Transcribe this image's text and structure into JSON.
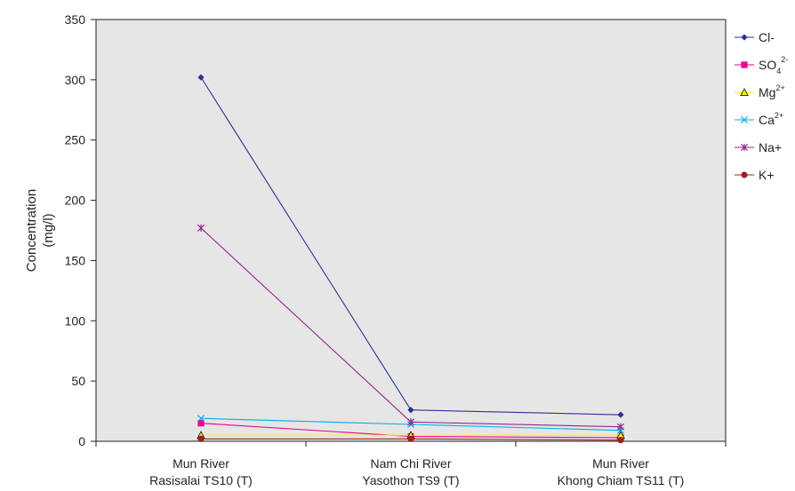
{
  "chart_data": {
    "type": "line",
    "title": "",
    "xlabel": "",
    "ylabel": [
      "Concentration",
      "(mg/l)"
    ],
    "ylim": [
      0,
      350
    ],
    "yticks": [
      0,
      50,
      100,
      150,
      200,
      250,
      300,
      350
    ],
    "grid": false,
    "legend_position": "right",
    "plot_background": "#e6e6e6",
    "categories": [
      [
        "Mun River",
        "Rasisalai TS10 (T)"
      ],
      [
        "Nam Chi River",
        "Yasothon TS9 (T)"
      ],
      [
        "Mun River",
        "Khong Chiam TS11 (T)"
      ]
    ],
    "series": [
      {
        "name": "Cl-",
        "base": "Cl-",
        "sup": "",
        "sub": "",
        "color": "#2e3192",
        "marker": "diamond",
        "values": [
          302,
          26,
          22
        ]
      },
      {
        "name": "SO42-",
        "base": "SO",
        "sub": "4",
        "sup": "2-",
        "color": "#ec008c",
        "marker": "square",
        "values": [
          15,
          4,
          3
        ]
      },
      {
        "name": "Mg2+",
        "base": "Mg",
        "sub": "",
        "sup": "2+",
        "color": "#fff200",
        "marker": "triangle",
        "values": [
          5,
          5,
          5
        ]
      },
      {
        "name": "Ca2+",
        "base": "Ca",
        "sub": "",
        "sup": "2+",
        "color": "#00aeef",
        "marker": "x",
        "values": [
          19,
          14,
          9
        ]
      },
      {
        "name": "Na+",
        "base": "Na+",
        "sub": "",
        "sup": "",
        "color": "#92278f",
        "marker": "star",
        "values": [
          177,
          16,
          12
        ]
      },
      {
        "name": "K+",
        "base": "K+",
        "sub": "",
        "sup": "",
        "color": "#9e1f1f",
        "marker": "circle",
        "values": [
          2,
          2,
          1
        ]
      }
    ]
  }
}
